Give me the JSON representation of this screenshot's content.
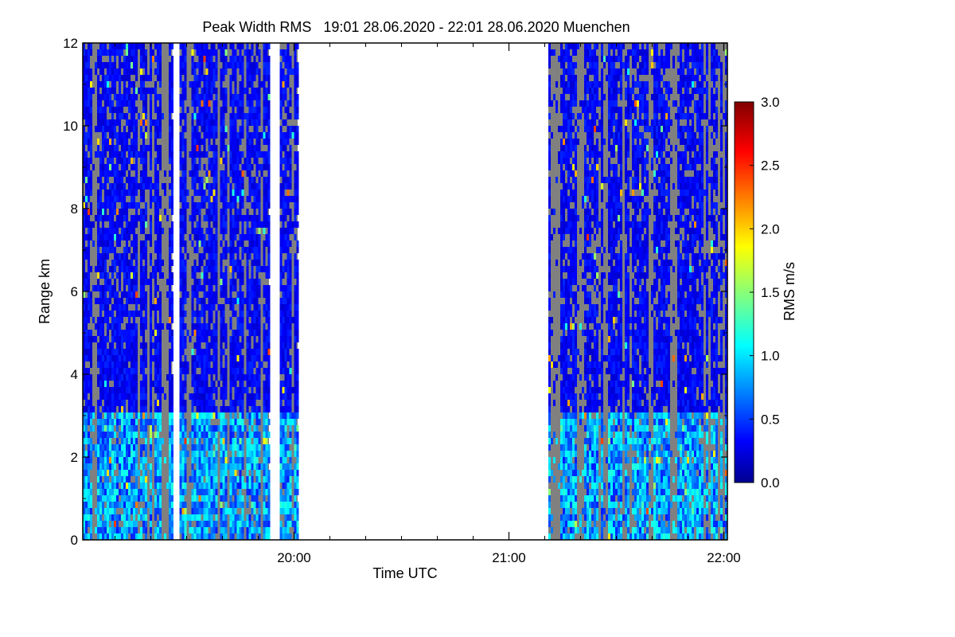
{
  "chart_data": {
    "type": "heatmap",
    "title": "Peak Width RMS   19:01 28.06.2020 - 22:01 28.06.2020 Muenchen",
    "xlabel": "Time UTC",
    "ylabel": "Range km",
    "x_range": [
      "19:01",
      "22:01"
    ],
    "x_ticks": [
      "20:00",
      "21:00",
      "22:00"
    ],
    "y_range_km": [
      0,
      12
    ],
    "y_ticks": [
      "0",
      "2",
      "4",
      "6",
      "8",
      "10",
      "12"
    ],
    "colorbar": {
      "label": "RMS m/s",
      "range": [
        0.0,
        3.0
      ],
      "ticks": [
        "0.0",
        "0.5",
        "1.0",
        "1.5",
        "2.0",
        "2.5",
        "3.0"
      ],
      "colormap": "jet"
    },
    "no_signal_color": "#808080",
    "data_gap": {
      "start": "20:01",
      "end": "21:11"
    },
    "scan_periods": [
      {
        "start": "19:01",
        "end": "19:26"
      },
      {
        "start": "19:28",
        "end": "19:53"
      },
      {
        "start": "19:56",
        "end": "20:01"
      },
      {
        "start": "21:11",
        "end": "21:53"
      },
      {
        "start": "21:53",
        "end": "22:01"
      }
    ],
    "typical_values": {
      "upper_troposphere": 0.3,
      "boundary_layer": 0.8,
      "maximum_observed": 2.5
    }
  }
}
